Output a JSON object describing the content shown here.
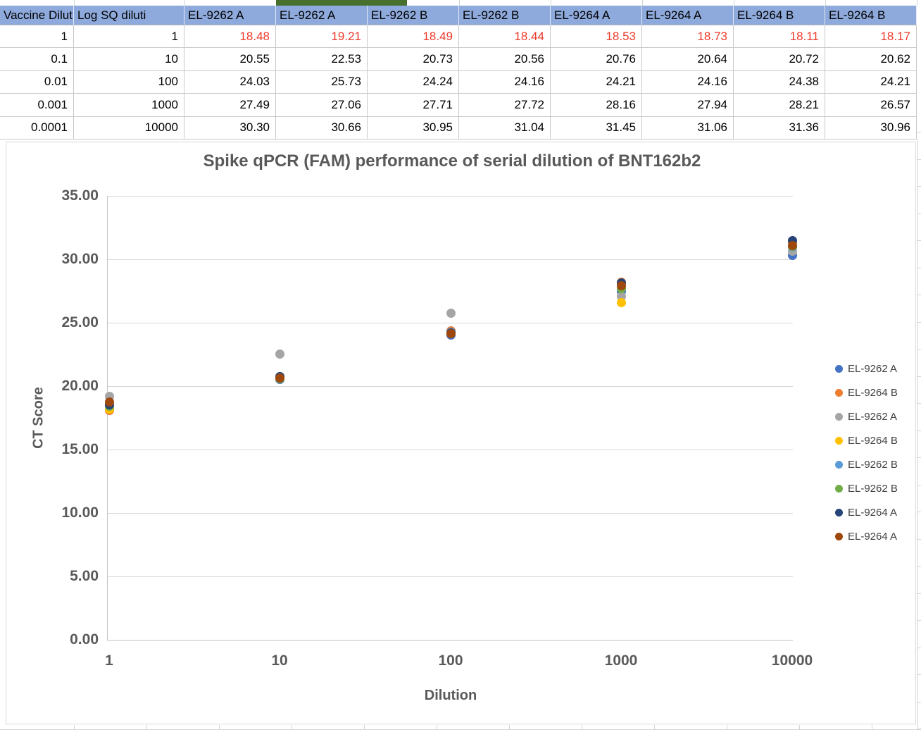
{
  "sheet": {
    "header_bg": "#8EA9DB",
    "highlight_text_color": "#ED3A2B",
    "green_cell_color": "#47702F",
    "gridline_color": "#D4D4D4"
  },
  "table": {
    "headers": [
      "Vaccine Dilut",
      "Log SQ diluti",
      "EL-9262 A",
      "EL-9262 A",
      "EL-9262 B",
      "EL-9262 B",
      "EL-9264 A",
      "EL-9264 A",
      "EL-9264 B",
      "EL-9264 B"
    ],
    "rows": [
      {
        "cells": [
          "1",
          "1",
          "18.48",
          "19.21",
          "18.49",
          "18.44",
          "18.53",
          "18.73",
          "18.11",
          "18.17"
        ],
        "highlight": true
      },
      {
        "cells": [
          "0.1",
          "10",
          "20.55",
          "22.53",
          "20.73",
          "20.56",
          "20.76",
          "20.64",
          "20.72",
          "20.62"
        ],
        "highlight": false
      },
      {
        "cells": [
          "0.01",
          "100",
          "24.03",
          "25.73",
          "24.24",
          "24.16",
          "24.21",
          "24.16",
          "24.38",
          "24.21"
        ],
        "highlight": false
      },
      {
        "cells": [
          "0.001",
          "1000",
          "27.49",
          "27.06",
          "27.71",
          "27.72",
          "28.16",
          "27.94",
          "28.21",
          "26.57"
        ],
        "highlight": false
      },
      {
        "cells": [
          "0.0001",
          "10000",
          "30.30",
          "30.66",
          "30.95",
          "31.04",
          "31.45",
          "31.06",
          "31.36",
          "30.96"
        ],
        "highlight": false
      }
    ]
  },
  "chart_data": {
    "type": "scatter",
    "title": "Spike qPCR (FAM) performance of serial dilution of BNT162b2",
    "xlabel": "Dilution",
    "ylabel": "CT Score",
    "x": [
      1,
      10,
      100,
      1000,
      10000
    ],
    "x_scale": "log",
    "xticks": [
      "1",
      "10",
      "100",
      "1000",
      "10000"
    ],
    "yticks": [
      "35.00",
      "30.00",
      "25.00",
      "20.00",
      "15.00",
      "10.00",
      "5.00",
      "0.00"
    ],
    "ylim": [
      0,
      35
    ],
    "ytick_step": 5,
    "grid": true,
    "legend_position": "right",
    "text_color": "#595959",
    "gridline_color": "#D9D9D9",
    "axis_line_color": "#C1C1C1",
    "legend_text_color": "#404040",
    "series": [
      {
        "name": "EL-9262 A",
        "color": "#4472C4",
        "values": [
          18.48,
          20.55,
          24.03,
          27.49,
          30.3
        ]
      },
      {
        "name": "EL-9264 B",
        "color": "#ED7D31",
        "values": [
          18.11,
          20.72,
          24.38,
          28.21,
          31.36
        ]
      },
      {
        "name": "EL-9262 A",
        "color": "#A5A5A5",
        "values": [
          19.21,
          22.53,
          25.73,
          27.06,
          30.66
        ]
      },
      {
        "name": "EL-9264 B",
        "color": "#FFC000",
        "values": [
          18.17,
          20.62,
          24.21,
          26.57,
          30.96
        ]
      },
      {
        "name": "EL-9262 B",
        "color": "#5B9BD5",
        "values": [
          18.49,
          20.73,
          24.24,
          27.71,
          30.95
        ]
      },
      {
        "name": "EL-9262 B",
        "color": "#70AD47",
        "values": [
          18.44,
          20.56,
          24.16,
          27.72,
          31.04
        ]
      },
      {
        "name": "EL-9264 A",
        "color": "#264478",
        "values": [
          18.53,
          20.76,
          24.21,
          28.16,
          31.45
        ]
      },
      {
        "name": "EL-9264 A",
        "color": "#9E480E",
        "values": [
          18.73,
          20.64,
          24.16,
          27.94,
          31.06
        ]
      }
    ]
  }
}
